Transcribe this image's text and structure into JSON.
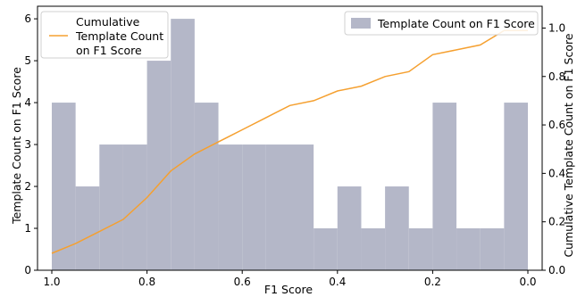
{
  "chart_data": {
    "type": "bar",
    "xlabel": "F1 Score",
    "ylabel_left": "Template Count on F1 Score",
    "ylabel_right": "Cumulative Template Count on F1 Score",
    "x_reversed": true,
    "xlim": [
      1.03,
      -0.03
    ],
    "ylim_left": [
      0,
      6.3
    ],
    "ylim_right": [
      0,
      1.09
    ],
    "x_ticks": [
      "1.0",
      "0.8",
      "0.6",
      "0.4",
      "0.2",
      "0.0"
    ],
    "x_tick_values": [
      1.0,
      0.8,
      0.6,
      0.4,
      0.2,
      0.0
    ],
    "y_ticks_left": [
      "0",
      "1",
      "2",
      "3",
      "4",
      "5",
      "6"
    ],
    "y_ticks_right": [
      "0.0",
      "0.2",
      "0.4",
      "0.6",
      "0.8",
      "1.0"
    ],
    "bin_width": 0.05,
    "histogram": {
      "name": "Template Count on F1 Score",
      "color": "#b4b7c8",
      "bins_left_edges": [
        1.0,
        0.95,
        0.9,
        0.85,
        0.8,
        0.75,
        0.7,
        0.65,
        0.6,
        0.55,
        0.5,
        0.45,
        0.4,
        0.35,
        0.3,
        0.25,
        0.2,
        0.15,
        0.1,
        0.05
      ],
      "counts": [
        4,
        2,
        3,
        3,
        5,
        6,
        4,
        3,
        3,
        3,
        3,
        1,
        2,
        1,
        2,
        1,
        4,
        1,
        1,
        4
      ]
    },
    "cumulative": {
      "name": "Cumulative Template Count on F1 Score",
      "legend_lines": [
        "Cumulative",
        "Template Count",
        "on F1 Score"
      ],
      "color": "#f5a030",
      "x": [
        1.0,
        0.95,
        0.9,
        0.85,
        0.8,
        0.75,
        0.7,
        0.65,
        0.6,
        0.55,
        0.5,
        0.45,
        0.4,
        0.35,
        0.3,
        0.25,
        0.2,
        0.15,
        0.1,
        0.05,
        0.0
      ],
      "y": [
        0.07,
        0.11,
        0.16,
        0.21,
        0.3,
        0.41,
        0.48,
        0.53,
        0.58,
        0.63,
        0.68,
        0.7,
        0.74,
        0.76,
        0.8,
        0.82,
        0.89,
        0.91,
        0.93,
        0.99,
        0.99
      ]
    },
    "legend_placement": [
      "top-left",
      "top-right"
    ],
    "grid": false
  }
}
